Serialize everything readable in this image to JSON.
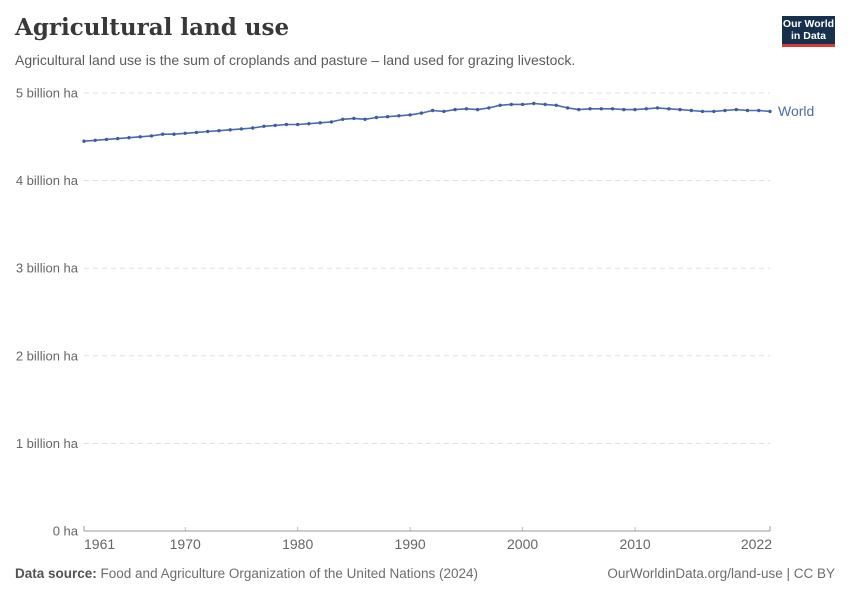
{
  "header": {
    "title": "Agricultural land use",
    "subtitle": "Agricultural land use is the sum of croplands and pasture – land used for grazing livestock.",
    "logo": {
      "line1": "Our World",
      "line2": "in Data"
    }
  },
  "chart_data": {
    "type": "line",
    "title": "Agricultural land use",
    "unit": "billion ha",
    "grid": "horizontal-dashed",
    "legend_position": "end-of-line",
    "ylim": [
      0,
      5
    ],
    "yticks": [
      0,
      1,
      2,
      3,
      4,
      5
    ],
    "ytick_labels": [
      "0 ha",
      "1 billion ha",
      "2 billion ha",
      "3 billion ha",
      "4 billion ha",
      "5 billion ha"
    ],
    "xticks": [
      1961,
      1970,
      1980,
      1990,
      2000,
      2010,
      2022
    ],
    "x": [
      1961,
      1962,
      1963,
      1964,
      1965,
      1966,
      1967,
      1968,
      1969,
      1970,
      1971,
      1972,
      1973,
      1974,
      1975,
      1976,
      1977,
      1978,
      1979,
      1980,
      1981,
      1982,
      1983,
      1984,
      1985,
      1986,
      1987,
      1988,
      1989,
      1990,
      1991,
      1992,
      1993,
      1994,
      1995,
      1996,
      1997,
      1998,
      1999,
      2000,
      2001,
      2002,
      2003,
      2004,
      2005,
      2006,
      2007,
      2008,
      2009,
      2010,
      2011,
      2012,
      2013,
      2014,
      2015,
      2016,
      2017,
      2018,
      2019,
      2020,
      2021,
      2022
    ],
    "series": [
      {
        "name": "World",
        "color": "#4C6BAE",
        "marker_color": "#3D5DA3",
        "values": [
          4.45,
          4.46,
          4.47,
          4.48,
          4.49,
          4.5,
          4.51,
          4.53,
          4.53,
          4.54,
          4.55,
          4.56,
          4.57,
          4.58,
          4.59,
          4.6,
          4.62,
          4.63,
          4.64,
          4.64,
          4.65,
          4.66,
          4.67,
          4.7,
          4.71,
          4.7,
          4.72,
          4.73,
          4.74,
          4.75,
          4.77,
          4.8,
          4.79,
          4.81,
          4.82,
          4.81,
          4.83,
          4.86,
          4.87,
          4.87,
          4.88,
          4.87,
          4.86,
          4.83,
          4.81,
          4.82,
          4.82,
          4.82,
          4.81,
          4.81,
          4.82,
          4.83,
          4.82,
          4.81,
          4.8,
          4.79,
          4.79,
          4.8,
          4.81,
          4.8,
          4.8,
          4.79
        ]
      }
    ]
  },
  "footer": {
    "source_label": "Data source:",
    "source_value": " Food and Agriculture Organization of the United Nations (2024)",
    "right_text": "OurWorldinData.org/land-use | CC BY"
  },
  "colors": {
    "grid": "#dfdfdf",
    "axis": "#9a9a9a",
    "tick_label": "#666666",
    "title": "#383838",
    "subtitle": "#5b5b5b",
    "logo_bg": "#16304e",
    "logo_red": "#d93a34",
    "accent_line": "#4C6BAE"
  }
}
